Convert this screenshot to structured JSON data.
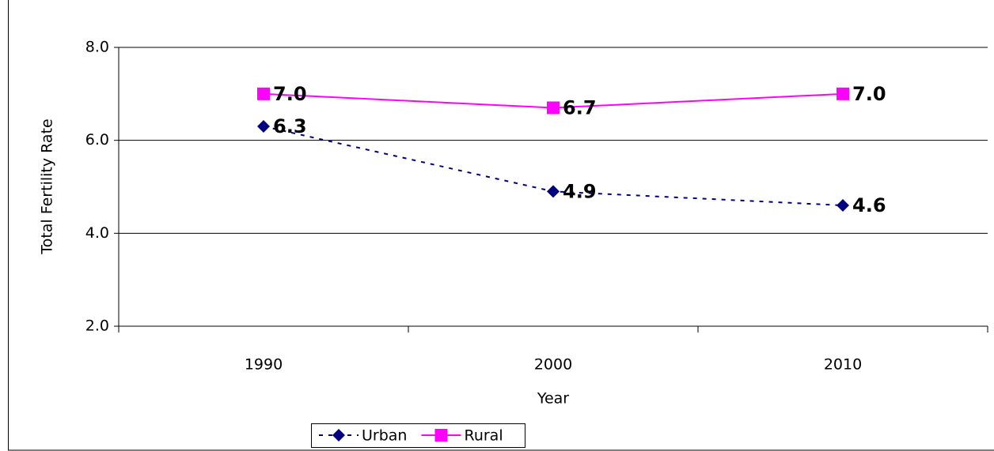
{
  "chart_data": {
    "type": "line",
    "x_label": "Year",
    "y_label": "Total Fertility Rate",
    "categories": [
      "1990",
      "2000",
      "2010"
    ],
    "series": [
      {
        "name": "Urban",
        "color": "#000080",
        "marker": "diamond",
        "dashed": true,
        "values": [
          6.3,
          4.9,
          4.6
        ],
        "value_labels": [
          "6.3",
          "4.9",
          "4.6"
        ]
      },
      {
        "name": "Rural",
        "color": "#ff00ff",
        "marker": "square",
        "dashed": false,
        "values": [
          7.0,
          6.7,
          7.0
        ],
        "value_labels": [
          "7.0",
          "6.7",
          "7.0"
        ]
      }
    ],
    "ylim": [
      2,
      8
    ],
    "yticks": [
      {
        "value": 2,
        "label": "2.0"
      },
      {
        "value": 4,
        "label": "4.0"
      },
      {
        "value": 6,
        "label": "6.0"
      },
      {
        "value": 8,
        "label": "8.0"
      }
    ],
    "grid": true,
    "legend": "bottom"
  }
}
